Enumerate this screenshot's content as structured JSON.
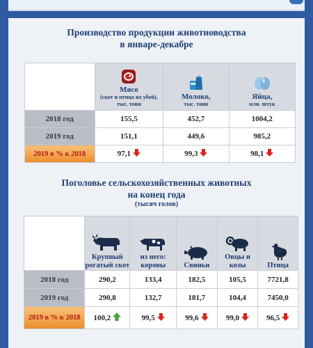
{
  "section1": {
    "title_line1": "Производство продукции животноводства",
    "title_line2": "в январе-декабре",
    "columns": [
      {
        "name": "Мясо",
        "unit": "(скот и птица на убой), тыс. тонн",
        "icon": "meat-icon"
      },
      {
        "name": "Молоко,",
        "unit": "тыс. тонн",
        "icon": "milk-icon"
      },
      {
        "name": "Яйца,",
        "unit": "млн. штук",
        "icon": "eggs-icon"
      }
    ],
    "rows": [
      {
        "label": "2018 год",
        "values": [
          "155,5",
          "452,7",
          "1004,2"
        ]
      },
      {
        "label": "2019 год",
        "values": [
          "151,1",
          "449,6",
          "985,2"
        ]
      },
      {
        "label": "2019 в % к 2018",
        "values": [
          "97,1",
          "99,3",
          "98,1"
        ],
        "trend": [
          "down",
          "down",
          "down"
        ]
      }
    ]
  },
  "section2": {
    "title_line1": "Поголовье сельскохозяйственных животных",
    "title_line2": "на конец года",
    "subtitle": "(тысяч голов)",
    "columns": [
      {
        "name": "Крупный рогатый скот",
        "icon": "cattle-icon"
      },
      {
        "name": "из него: коровы",
        "icon": "cow-icon"
      },
      {
        "name": "Свиньи",
        "icon": "pig-icon"
      },
      {
        "name": "Овцы и козы",
        "icon": "sheep-icon"
      },
      {
        "name": "Птица",
        "icon": "chicken-icon"
      }
    ],
    "rows": [
      {
        "label": "2018 год",
        "values": [
          "290,2",
          "133,4",
          "182,5",
          "105,5",
          "7721,8"
        ]
      },
      {
        "label": "2019 год",
        "values": [
          "290,8",
          "132,7",
          "181,7",
          "104,4",
          "7450,0"
        ]
      },
      {
        "label": "2019 в % к 2018",
        "values": [
          "100,2",
          "99,5",
          "99,6",
          "99,0",
          "96,5"
        ],
        "trend": [
          "up",
          "down",
          "down",
          "down",
          "down"
        ]
      }
    ]
  },
  "colors": {
    "accent": "#1f3f73",
    "highlight": "#ec8b2c",
    "down": "#d7261e",
    "up": "#4aa23a"
  }
}
